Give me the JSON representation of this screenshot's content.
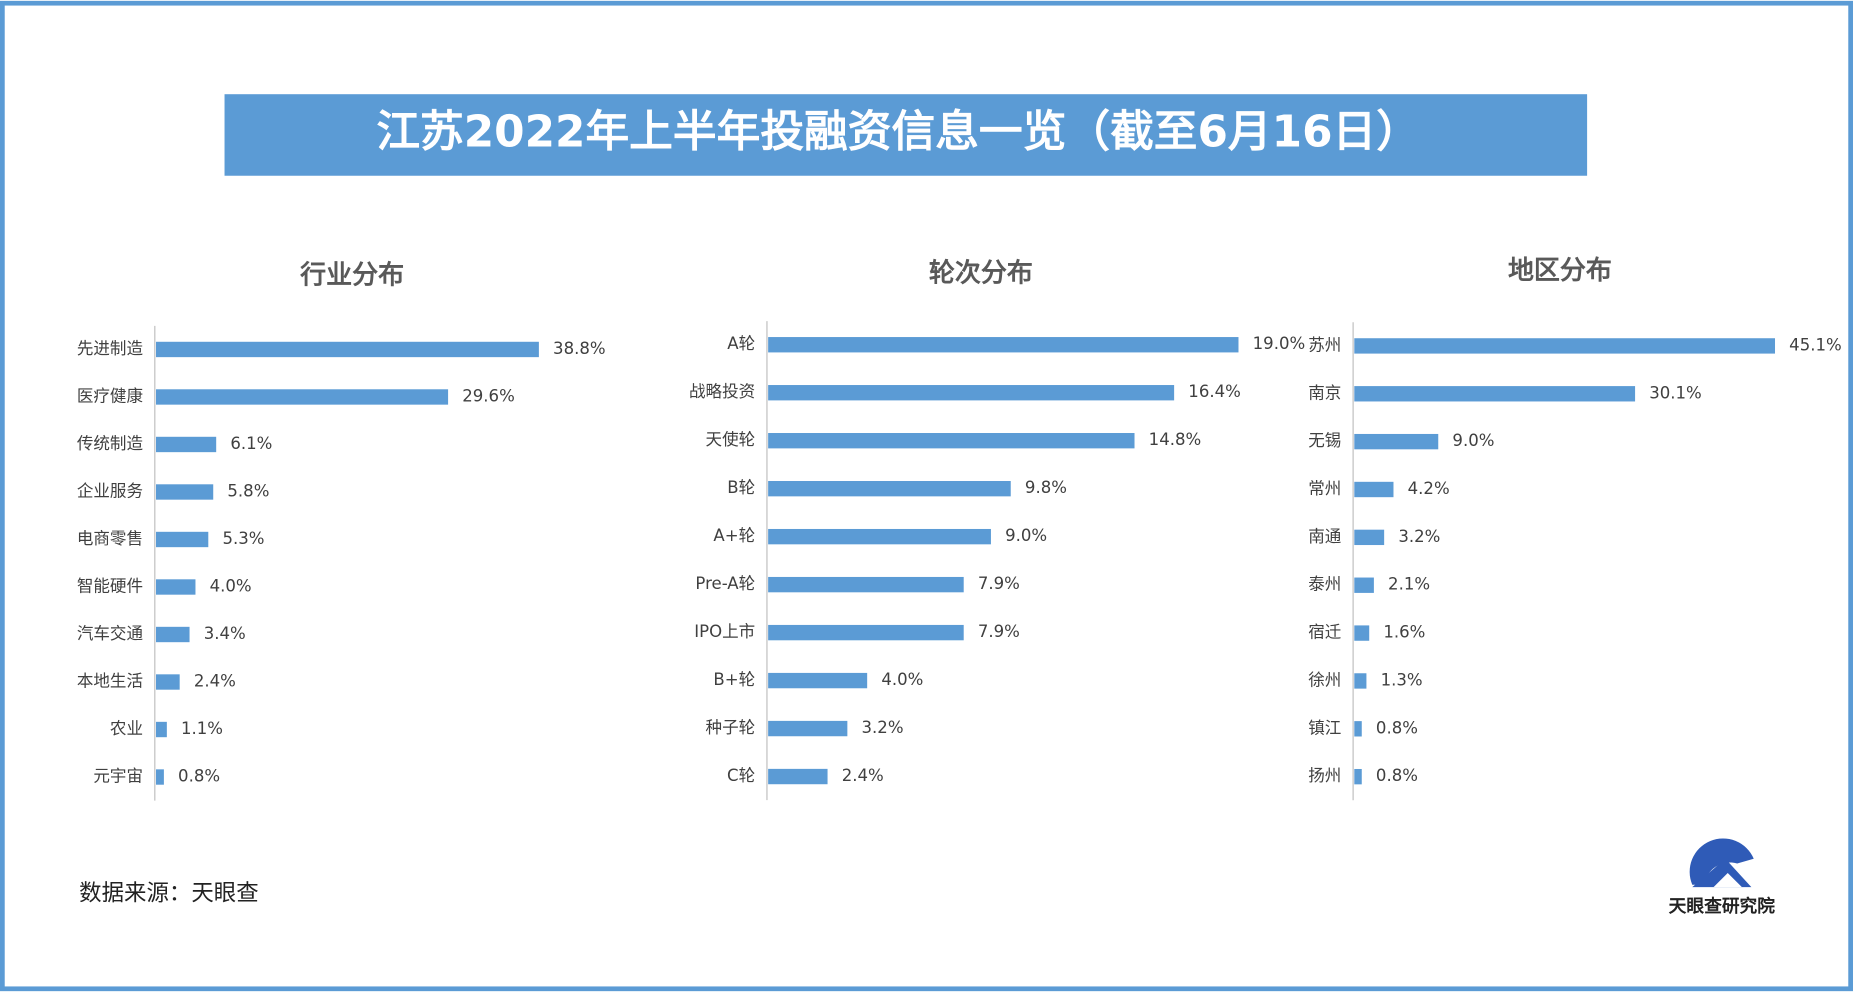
{
  "title": "江苏2022年上半年投融资信息一览（截至6月16日）",
  "chart_data": [
    {
      "type": "bar",
      "title": "行业分布",
      "color": "#5b9bd5",
      "categories": [
        "先进制造",
        "医疗健康",
        "传统制造",
        "企业服务",
        "电商零售",
        "智能硬件",
        "汽车交通",
        "本地生活",
        "农业",
        "元宇宙"
      ],
      "values": [
        38.8,
        29.6,
        6.1,
        5.8,
        5.3,
        4.0,
        3.4,
        2.4,
        1.1,
        0.8
      ],
      "value_labels": [
        "38.8%",
        "29.6%",
        "6.1%",
        "5.8%",
        "5.3%",
        "4.0%",
        "3.4%",
        "2.4%",
        "1.1%",
        "0.8%"
      ]
    },
    {
      "type": "bar",
      "title": "轮次分布",
      "color": "#5b9bd5",
      "categories": [
        "A轮",
        "战略投资",
        "天使轮",
        "B轮",
        "A+轮",
        "Pre-A轮",
        "IPO上市",
        "B+轮",
        "种子轮",
        "C轮"
      ],
      "values": [
        19.0,
        16.4,
        14.8,
        9.8,
        9.0,
        7.9,
        7.9,
        4.0,
        3.2,
        2.4
      ],
      "value_labels": [
        "19.0%",
        "16.4%",
        "14.8%",
        "9.8%",
        "9.0%",
        "7.9%",
        "7.9%",
        "4.0%",
        "3.2%",
        "2.4%"
      ]
    },
    {
      "type": "bar",
      "title": "地区分布",
      "color": "#5b9bd5",
      "categories": [
        "苏州",
        "南京",
        "无锡",
        "常州",
        "南通",
        "泰州",
        "宿迁",
        "徐州",
        "镇江",
        "扬州"
      ],
      "values": [
        45.1,
        30.1,
        9.0,
        4.2,
        3.2,
        2.1,
        1.6,
        1.3,
        0.8,
        0.8
      ],
      "value_labels": [
        "45.1%",
        "30.1%",
        "9.0%",
        "4.2%",
        "3.2%",
        "2.1%",
        "1.6%",
        "1.3%",
        "0.8%",
        "0.8%"
      ]
    }
  ],
  "source": "数据来源：天眼查",
  "logo": "天眼查研究院"
}
